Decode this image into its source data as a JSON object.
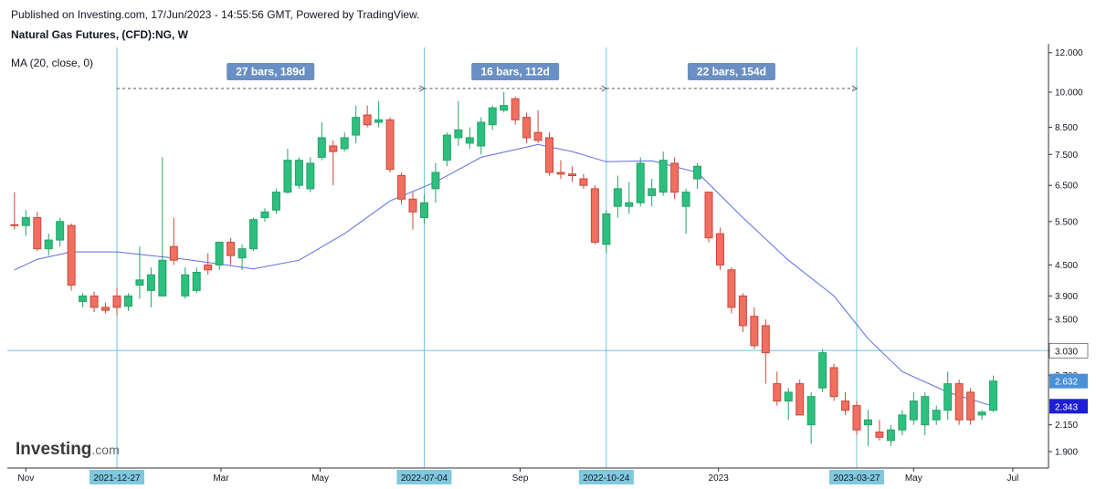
{
  "header": {
    "publish_line": "Published on Investing.com, 17/Jun/2023 - 14:55:56 GMT, Powered by TradingView.",
    "symbol_line": "Natural Gas Futures, (CFD):NG, W",
    "indicator_line": "MA (20, close, 0)"
  },
  "watermark": {
    "brand": "Investing",
    "suffix": ".com"
  },
  "colors": {
    "up": "#26a269",
    "up_fill": "#2dbf7e",
    "down": "#c94a3a",
    "down_fill": "#ef6f60",
    "ma": "#5b6ee1",
    "marker_line": "#6ec5e0",
    "measure_label": "#6a8fc4",
    "date_label": "#7fc8dd",
    "price_tag_blue": "#4a90d9",
    "price_tag_dark": "#1d1fd6"
  },
  "chart_data": {
    "type": "candlestick",
    "title": "Natural Gas Futures, (CFD):NG, W",
    "indicator": "MA (20, close, 0)",
    "y_scale": "log",
    "y_ticks": [
      "12.000",
      "10.000",
      "8.500",
      "7.500",
      "6.500",
      "5.500",
      "4.500",
      "3.900",
      "3.500",
      "3.030",
      "2.700",
      "2.150",
      "1.900"
    ],
    "y_tick_values": [
      12.0,
      10.0,
      8.5,
      7.5,
      6.5,
      5.5,
      4.5,
      3.9,
      3.5,
      3.03,
      2.7,
      2.15,
      1.9
    ],
    "x_ticks": [
      {
        "label": "Nov",
        "date": "2021-11-01"
      },
      {
        "label": "Mar",
        "date": "2022-03-01"
      },
      {
        "label": "May",
        "date": "2022-05-01"
      },
      {
        "label": "Sep",
        "date": "2022-09-01"
      },
      {
        "label": "2023",
        "date": "2023-01-01"
      },
      {
        "label": "May",
        "date": "2023-05-01"
      },
      {
        "label": "Jul",
        "date": "2023-07-01"
      }
    ],
    "candles": [
      {
        "date": "2021-10-25",
        "o": 5.42,
        "h": 6.3,
        "l": 5.3,
        "c": 5.4
      },
      {
        "date": "2021-11-01",
        "o": 5.4,
        "h": 5.8,
        "l": 5.15,
        "c": 5.6
      },
      {
        "date": "2021-11-08",
        "o": 5.6,
        "h": 5.75,
        "l": 4.8,
        "c": 4.85
      },
      {
        "date": "2021-11-15",
        "o": 4.85,
        "h": 5.2,
        "l": 4.7,
        "c": 5.05
      },
      {
        "date": "2021-11-22",
        "o": 5.05,
        "h": 5.6,
        "l": 4.9,
        "c": 5.5
      },
      {
        "date": "2021-11-29",
        "o": 5.4,
        "h": 5.45,
        "l": 4.0,
        "c": 4.1
      },
      {
        "date": "2021-12-06",
        "o": 3.8,
        "h": 3.95,
        "l": 3.7,
        "c": 3.9
      },
      {
        "date": "2021-12-13",
        "o": 3.9,
        "h": 3.98,
        "l": 3.62,
        "c": 3.7
      },
      {
        "date": "2021-12-20",
        "o": 3.7,
        "h": 3.78,
        "l": 3.6,
        "c": 3.65
      },
      {
        "date": "2021-12-27",
        "o": 3.9,
        "h": 4.05,
        "l": 3.56,
        "c": 3.7
      },
      {
        "date": "2022-01-03",
        "o": 3.72,
        "h": 3.95,
        "l": 3.64,
        "c": 3.9
      },
      {
        "date": "2022-01-10",
        "o": 4.1,
        "h": 4.9,
        "l": 3.85,
        "c": 4.2
      },
      {
        "date": "2022-01-17",
        "o": 4.0,
        "h": 4.45,
        "l": 3.7,
        "c": 4.3
      },
      {
        "date": "2022-01-24",
        "o": 3.9,
        "h": 7.4,
        "l": 3.9,
        "c": 4.6
      },
      {
        "date": "2022-01-31",
        "o": 4.9,
        "h": 5.6,
        "l": 4.5,
        "c": 4.6
      },
      {
        "date": "2022-02-07",
        "o": 3.9,
        "h": 4.45,
        "l": 3.85,
        "c": 4.3
      },
      {
        "date": "2022-02-14",
        "o": 4.0,
        "h": 4.45,
        "l": 3.95,
        "c": 4.35
      },
      {
        "date": "2022-02-21",
        "o": 4.5,
        "h": 4.75,
        "l": 4.3,
        "c": 4.4
      },
      {
        "date": "2022-02-28",
        "o": 4.5,
        "h": 5.0,
        "l": 4.4,
        "c": 5.0
      },
      {
        "date": "2022-03-07",
        "o": 5.0,
        "h": 5.1,
        "l": 4.5,
        "c": 4.7
      },
      {
        "date": "2022-03-14",
        "o": 4.65,
        "h": 4.95,
        "l": 4.4,
        "c": 4.85
      },
      {
        "date": "2022-03-21",
        "o": 4.85,
        "h": 5.6,
        "l": 4.8,
        "c": 5.55
      },
      {
        "date": "2022-03-28",
        "o": 5.6,
        "h": 5.85,
        "l": 5.5,
        "c": 5.75
      },
      {
        "date": "2022-04-04",
        "o": 5.8,
        "h": 6.4,
        "l": 5.7,
        "c": 6.3
      },
      {
        "date": "2022-04-11",
        "o": 6.3,
        "h": 7.7,
        "l": 6.25,
        "c": 7.3
      },
      {
        "date": "2022-04-18",
        "o": 6.5,
        "h": 7.4,
        "l": 6.4,
        "c": 7.3
      },
      {
        "date": "2022-04-25",
        "o": 6.4,
        "h": 7.4,
        "l": 6.3,
        "c": 7.2
      },
      {
        "date": "2022-05-02",
        "o": 7.4,
        "h": 8.7,
        "l": 7.3,
        "c": 8.1
      },
      {
        "date": "2022-05-09",
        "o": 7.8,
        "h": 8.0,
        "l": 6.5,
        "c": 7.6
      },
      {
        "date": "2022-05-16",
        "o": 7.7,
        "h": 8.3,
        "l": 7.6,
        "c": 8.1
      },
      {
        "date": "2022-05-23",
        "o": 8.2,
        "h": 9.4,
        "l": 7.9,
        "c": 8.9
      },
      {
        "date": "2022-05-30",
        "o": 9.0,
        "h": 9.4,
        "l": 8.5,
        "c": 8.6
      },
      {
        "date": "2022-06-06",
        "o": 8.7,
        "h": 9.6,
        "l": 8.5,
        "c": 8.8
      },
      {
        "date": "2022-06-13",
        "o": 8.8,
        "h": 8.9,
        "l": 6.9,
        "c": 7.0
      },
      {
        "date": "2022-06-20",
        "o": 6.8,
        "h": 6.9,
        "l": 5.95,
        "c": 6.1
      },
      {
        "date": "2022-06-27",
        "o": 6.1,
        "h": 6.3,
        "l": 5.3,
        "c": 5.75
      },
      {
        "date": "2022-07-04",
        "o": 5.6,
        "h": 6.25,
        "l": 5.45,
        "c": 6.0
      },
      {
        "date": "2022-07-11",
        "o": 6.4,
        "h": 7.2,
        "l": 6.0,
        "c": 6.9
      },
      {
        "date": "2022-07-18",
        "o": 7.3,
        "h": 8.3,
        "l": 7.1,
        "c": 8.2
      },
      {
        "date": "2022-07-25",
        "o": 8.1,
        "h": 9.6,
        "l": 7.8,
        "c": 8.4
      },
      {
        "date": "2022-08-01",
        "o": 7.9,
        "h": 8.5,
        "l": 7.7,
        "c": 8.1
      },
      {
        "date": "2022-08-08",
        "o": 7.8,
        "h": 8.9,
        "l": 7.5,
        "c": 8.7
      },
      {
        "date": "2022-08-15",
        "o": 8.6,
        "h": 9.4,
        "l": 8.4,
        "c": 9.3
      },
      {
        "date": "2022-08-22",
        "o": 9.2,
        "h": 10.0,
        "l": 9.1,
        "c": 9.4
      },
      {
        "date": "2022-08-29",
        "o": 9.7,
        "h": 9.8,
        "l": 8.6,
        "c": 8.8
      },
      {
        "date": "2022-09-05",
        "o": 8.9,
        "h": 9.1,
        "l": 7.9,
        "c": 8.1
      },
      {
        "date": "2022-09-12",
        "o": 8.3,
        "h": 9.2,
        "l": 7.9,
        "c": 8.0
      },
      {
        "date": "2022-09-19",
        "o": 8.1,
        "h": 8.3,
        "l": 6.8,
        "c": 6.9
      },
      {
        "date": "2022-09-26",
        "o": 6.9,
        "h": 7.3,
        "l": 6.7,
        "c": 6.85
      },
      {
        "date": "2022-10-03",
        "o": 6.85,
        "h": 7.1,
        "l": 6.6,
        "c": 6.8
      },
      {
        "date": "2022-10-10",
        "o": 6.7,
        "h": 6.85,
        "l": 6.4,
        "c": 6.5
      },
      {
        "date": "2022-10-17",
        "o": 6.4,
        "h": 6.5,
        "l": 4.95,
        "c": 5.0
      },
      {
        "date": "2022-10-24",
        "o": 4.95,
        "h": 5.8,
        "l": 4.75,
        "c": 5.7
      },
      {
        "date": "2022-10-31",
        "o": 5.9,
        "h": 6.8,
        "l": 5.6,
        "c": 6.4
      },
      {
        "date": "2022-11-07",
        "o": 5.9,
        "h": 6.6,
        "l": 5.7,
        "c": 6.0
      },
      {
        "date": "2022-11-14",
        "o": 6.0,
        "h": 7.4,
        "l": 5.9,
        "c": 7.2
      },
      {
        "date": "2022-11-21",
        "o": 6.2,
        "h": 6.7,
        "l": 5.9,
        "c": 6.4
      },
      {
        "date": "2022-11-28",
        "o": 6.3,
        "h": 7.6,
        "l": 6.2,
        "c": 7.3
      },
      {
        "date": "2022-12-05",
        "o": 7.2,
        "h": 7.4,
        "l": 6.1,
        "c": 6.3
      },
      {
        "date": "2022-12-12",
        "o": 5.9,
        "h": 6.4,
        "l": 5.2,
        "c": 6.3
      },
      {
        "date": "2022-12-19",
        "o": 6.7,
        "h": 7.2,
        "l": 6.4,
        "c": 7.1
      },
      {
        "date": "2022-12-26",
        "o": 6.3,
        "h": 6.3,
        "l": 5.0,
        "c": 5.1
      },
      {
        "date": "2023-01-02",
        "o": 5.2,
        "h": 5.35,
        "l": 4.4,
        "c": 4.5
      },
      {
        "date": "2023-01-09",
        "o": 4.4,
        "h": 4.45,
        "l": 3.6,
        "c": 3.7
      },
      {
        "date": "2023-01-16",
        "o": 3.9,
        "h": 3.95,
        "l": 3.3,
        "c": 3.4
      },
      {
        "date": "2023-01-23",
        "o": 3.55,
        "h": 3.7,
        "l": 3.05,
        "c": 3.1
      },
      {
        "date": "2023-01-30",
        "o": 3.4,
        "h": 3.5,
        "l": 2.6,
        "c": 3.0
      },
      {
        "date": "2023-02-06",
        "o": 2.6,
        "h": 2.75,
        "l": 2.35,
        "c": 2.4
      },
      {
        "date": "2023-02-13",
        "o": 2.4,
        "h": 2.55,
        "l": 2.2,
        "c": 2.5
      },
      {
        "date": "2023-02-20",
        "o": 2.6,
        "h": 2.65,
        "l": 2.25,
        "c": 2.25
      },
      {
        "date": "2023-02-27",
        "o": 2.15,
        "h": 2.5,
        "l": 1.97,
        "c": 2.45
      },
      {
        "date": "2023-03-06",
        "o": 2.55,
        "h": 3.05,
        "l": 2.5,
        "c": 3.0
      },
      {
        "date": "2023-03-13",
        "o": 2.8,
        "h": 2.85,
        "l": 2.4,
        "c": 2.45
      },
      {
        "date": "2023-03-20",
        "o": 2.4,
        "h": 2.5,
        "l": 2.25,
        "c": 2.3
      },
      {
        "date": "2023-03-27",
        "o": 2.35,
        "h": 2.4,
        "l": 2.05,
        "c": 2.1
      },
      {
        "date": "2023-04-03",
        "o": 2.15,
        "h": 2.3,
        "l": 1.95,
        "c": 2.2
      },
      {
        "date": "2023-04-10",
        "o": 2.08,
        "h": 2.2,
        "l": 2.0,
        "c": 2.03
      },
      {
        "date": "2023-04-17",
        "o": 2.0,
        "h": 2.15,
        "l": 1.95,
        "c": 2.1
      },
      {
        "date": "2023-04-24",
        "o": 2.1,
        "h": 2.3,
        "l": 2.05,
        "c": 2.25
      },
      {
        "date": "2023-05-01",
        "o": 2.2,
        "h": 2.5,
        "l": 2.15,
        "c": 2.4
      },
      {
        "date": "2023-05-08",
        "o": 2.15,
        "h": 2.5,
        "l": 2.05,
        "c": 2.45
      },
      {
        "date": "2023-05-15",
        "o": 2.2,
        "h": 2.35,
        "l": 2.15,
        "c": 2.3
      },
      {
        "date": "2023-05-22",
        "o": 2.3,
        "h": 2.75,
        "l": 2.2,
        "c": 2.6
      },
      {
        "date": "2023-05-29",
        "o": 2.6,
        "h": 2.65,
        "l": 2.15,
        "c": 2.2
      },
      {
        "date": "2023-06-05",
        "o": 2.5,
        "h": 2.55,
        "l": 2.15,
        "c": 2.2
      },
      {
        "date": "2023-06-12",
        "o": 2.25,
        "h": 2.3,
        "l": 2.2,
        "c": 2.28
      },
      {
        "date": "2023-06-19",
        "o": 2.3,
        "h": 2.7,
        "l": 2.28,
        "c": 2.632
      }
    ],
    "ma20": [
      {
        "date": "2021-10-25",
        "v": 4.4
      },
      {
        "date": "2021-11-08",
        "v": 4.62
      },
      {
        "date": "2021-11-29",
        "v": 4.78
      },
      {
        "date": "2021-12-27",
        "v": 4.78
      },
      {
        "date": "2022-02-07",
        "v": 4.62
      },
      {
        "date": "2022-03-21",
        "v": 4.42
      },
      {
        "date": "2022-04-18",
        "v": 4.6
      },
      {
        "date": "2022-05-16",
        "v": 5.2
      },
      {
        "date": "2022-06-13",
        "v": 6.05
      },
      {
        "date": "2022-07-11",
        "v": 6.6
      },
      {
        "date": "2022-08-08",
        "v": 7.4
      },
      {
        "date": "2022-09-12",
        "v": 7.85
      },
      {
        "date": "2022-10-03",
        "v": 7.6
      },
      {
        "date": "2022-10-24",
        "v": 7.25
      },
      {
        "date": "2022-11-21",
        "v": 7.28
      },
      {
        "date": "2022-12-19",
        "v": 6.9
      },
      {
        "date": "2023-01-16",
        "v": 5.6
      },
      {
        "date": "2023-02-13",
        "v": 4.6
      },
      {
        "date": "2023-03-13",
        "v": 3.9
      },
      {
        "date": "2023-04-03",
        "v": 3.2
      },
      {
        "date": "2023-04-24",
        "v": 2.75
      },
      {
        "date": "2023-05-22",
        "v": 2.5
      },
      {
        "date": "2023-06-19",
        "v": 2.343
      }
    ],
    "horizontal_line": {
      "value": 3.03,
      "label": "3.030"
    },
    "price_tags": [
      {
        "value": 2.632,
        "label": "2.632",
        "style": "blue"
      },
      {
        "value": 2.343,
        "label": "2.343",
        "style": "dark"
      }
    ],
    "date_markers": [
      {
        "date": "2021-12-27",
        "label": "2021-12-27"
      },
      {
        "date": "2022-07-04",
        "label": "2022-07-04"
      },
      {
        "date": "2022-10-24",
        "label": "2022-10-24"
      },
      {
        "date": "2023-03-27",
        "label": "2023-03-27"
      }
    ],
    "measurements": [
      {
        "from": "2021-12-27",
        "to": "2022-07-04",
        "label": "27 bars, 189d"
      },
      {
        "from": "2022-07-04",
        "to": "2022-10-24",
        "label": "16 bars, 112d"
      },
      {
        "from": "2022-10-24",
        "to": "2023-03-27",
        "label": "22 bars, 154d"
      }
    ]
  }
}
